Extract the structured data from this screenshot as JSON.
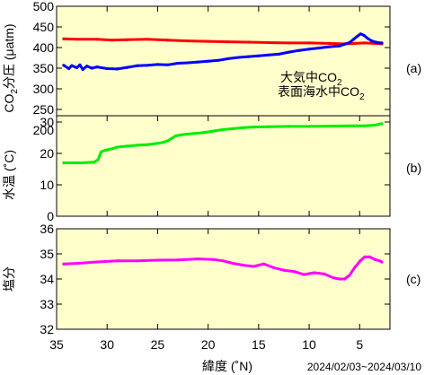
{
  "chart_data": [
    {
      "type": "line",
      "panel_tag": "(a)",
      "ylabel_main": "CO",
      "ylabel_sub": "2",
      "ylabel_rest": "分圧 (μatm)",
      "xlim": [
        35,
        2
      ],
      "ylim": [
        200,
        500
      ],
      "yticks": [
        200,
        250,
        300,
        350,
        400,
        450,
        500
      ],
      "ytick_labels": [
        "200",
        "250",
        "300",
        "350",
        "400",
        "450",
        "500"
      ],
      "legend": [
        {
          "prefix": "大気中CO",
          "sub": "2",
          "color": "#ff0000"
        },
        {
          "prefix": "表面海水中CO",
          "sub": "2",
          "color": "#0000ff"
        }
      ],
      "series": [
        {
          "name": "大気中CO2",
          "color": "#ff0000",
          "points": [
            [
              34.3,
              421
            ],
            [
              33,
              420
            ],
            [
              31,
              420
            ],
            [
              29.5,
              418
            ],
            [
              28,
              419
            ],
            [
              26,
              420
            ],
            [
              24,
              418
            ],
            [
              22,
              416
            ],
            [
              20,
              415
            ],
            [
              18,
              414
            ],
            [
              16,
              413
            ],
            [
              14,
              412
            ],
            [
              12,
              411
            ],
            [
              10,
              411
            ],
            [
              8,
              410
            ],
            [
              6.5,
              409
            ],
            [
              5.5,
              410
            ],
            [
              4.5,
              411
            ],
            [
              3.5,
              410
            ],
            [
              2.8,
              409
            ]
          ]
        },
        {
          "name": "表面海水中CO2",
          "color": "#0000ff",
          "points": [
            [
              34.3,
              357
            ],
            [
              33.8,
              349
            ],
            [
              33.5,
              356
            ],
            [
              33,
              351
            ],
            [
              32.7,
              358
            ],
            [
              32.4,
              347
            ],
            [
              32,
              355
            ],
            [
              31.5,
              350
            ],
            [
              31,
              353
            ],
            [
              30,
              349
            ],
            [
              29,
              348
            ],
            [
              28,
              352
            ],
            [
              27,
              356
            ],
            [
              26,
              357
            ],
            [
              25,
              359
            ],
            [
              24,
              358
            ],
            [
              23,
              362
            ],
            [
              22,
              363
            ],
            [
              21,
              365
            ],
            [
              20,
              367
            ],
            [
              19,
              369
            ],
            [
              18,
              373
            ],
            [
              17,
              376
            ],
            [
              16,
              378
            ],
            [
              15,
              380
            ],
            [
              14,
              382
            ],
            [
              13,
              384
            ],
            [
              12,
              389
            ],
            [
              11,
              393
            ],
            [
              10,
              396
            ],
            [
              9,
              399
            ],
            [
              8,
              402
            ],
            [
              7,
              404
            ],
            [
              6.5,
              408
            ],
            [
              6,
              412
            ],
            [
              5.6,
              420
            ],
            [
              5.2,
              428
            ],
            [
              4.9,
              433
            ],
            [
              4.6,
              430
            ],
            [
              4.2,
              422
            ],
            [
              3.8,
              416
            ],
            [
              3.4,
              413
            ],
            [
              3,
              411
            ],
            [
              2.8,
              411
            ]
          ]
        }
      ]
    },
    {
      "type": "line",
      "panel_tag": "(b)",
      "ylabel": "水温 (˚C)",
      "xlim": [
        35,
        2
      ],
      "ylim": [
        0,
        32
      ],
      "yticks": [
        0,
        10,
        20,
        30
      ],
      "ytick_labels": [
        "0",
        "10",
        "20",
        "30"
      ],
      "series": [
        {
          "name": "水温",
          "color": "#00ee00",
          "points": [
            [
              34.3,
              17
            ],
            [
              33.5,
              17
            ],
            [
              32.5,
              17
            ],
            [
              31.3,
              17.2
            ],
            [
              30.9,
              18
            ],
            [
              30.6,
              20.5
            ],
            [
              30.2,
              21
            ],
            [
              29.5,
              21.5
            ],
            [
              29,
              22
            ],
            [
              28,
              22.3
            ],
            [
              27,
              22.6
            ],
            [
              26,
              22.8
            ],
            [
              25,
              23.2
            ],
            [
              24.5,
              23.5
            ],
            [
              24,
              24
            ],
            [
              23.6,
              24.8
            ],
            [
              23.2,
              25.6
            ],
            [
              22.5,
              26
            ],
            [
              21.5,
              26.3
            ],
            [
              20.5,
              26.6
            ],
            [
              19.5,
              27.1
            ],
            [
              18.5,
              27.6
            ],
            [
              17.5,
              27.9
            ],
            [
              16.5,
              28.2
            ],
            [
              15.5,
              28.4
            ],
            [
              14,
              28.5
            ],
            [
              12,
              28.6
            ],
            [
              10,
              28.6
            ],
            [
              8,
              28.7
            ],
            [
              6,
              28.8
            ],
            [
              4.5,
              28.8
            ],
            [
              3.5,
              29
            ],
            [
              2.8,
              29.5
            ]
          ]
        }
      ]
    },
    {
      "type": "line",
      "panel_tag": "(c)",
      "ylabel": "塩分",
      "xlim": [
        35,
        2
      ],
      "ylim": [
        32,
        36
      ],
      "yticks": [
        32,
        33,
        34,
        35,
        36
      ],
      "ytick_labels": [
        "32",
        "33",
        "34",
        "35",
        "36"
      ],
      "series": [
        {
          "name": "塩分",
          "color": "#ff00ff",
          "points": [
            [
              34.3,
              34.6
            ],
            [
              33,
              34.62
            ],
            [
              31,
              34.68
            ],
            [
              29,
              34.72
            ],
            [
              27,
              34.72
            ],
            [
              25,
              34.75
            ],
            [
              23,
              34.76
            ],
            [
              21,
              34.8
            ],
            [
              19.5,
              34.78
            ],
            [
              18.5,
              34.72
            ],
            [
              17.5,
              34.62
            ],
            [
              16.5,
              34.55
            ],
            [
              15.5,
              34.5
            ],
            [
              14.5,
              34.6
            ],
            [
              13.5,
              34.45
            ],
            [
              12.5,
              34.35
            ],
            [
              11.5,
              34.3
            ],
            [
              10.5,
              34.18
            ],
            [
              9.5,
              34.25
            ],
            [
              8.5,
              34.2
            ],
            [
              7.6,
              34.05
            ],
            [
              7,
              34.0
            ],
            [
              6.5,
              34.0
            ],
            [
              6,
              34.15
            ],
            [
              5.5,
              34.45
            ],
            [
              5,
              34.7
            ],
            [
              4.5,
              34.88
            ],
            [
              4,
              34.88
            ],
            [
              3.5,
              34.78
            ],
            [
              3,
              34.72
            ],
            [
              2.8,
              34.68
            ]
          ]
        }
      ]
    }
  ],
  "xaxis": {
    "xlim": [
      35,
      2
    ],
    "ticks": [
      35,
      30,
      25,
      20,
      15,
      10,
      5
    ],
    "tick_labels": [
      "35",
      "30",
      "25",
      "20",
      "15",
      "10",
      "5"
    ],
    "label": "緯度 (˚N)"
  },
  "period_label": "2024/02/03~2024/03/10",
  "colors": {
    "panel_background": "#ffffcc",
    "atmosphere": "#ff0000",
    "seawater": "#0000ff",
    "temperature": "#00ee00",
    "salinity": "#ff00ff"
  }
}
